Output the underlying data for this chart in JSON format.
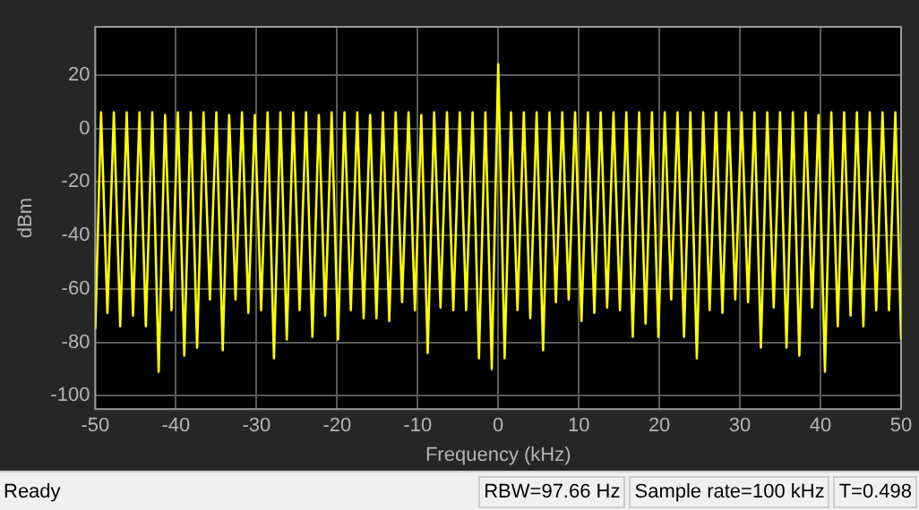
{
  "chart_data": {
    "type": "line",
    "xlabel": "Frequency (kHz)",
    "ylabel": "dBm",
    "x": [
      -50,
      -49.29,
      -48.5,
      -47.7,
      -46.91,
      -46.11,
      -45.32,
      -44.52,
      -43.73,
      -42.93,
      -42.14,
      -41.34,
      -40.55,
      -39.75,
      -38.96,
      -38.16,
      -37.37,
      -36.57,
      -35.78,
      -34.98,
      -34.19,
      -33.39,
      -32.6,
      -31.8,
      -31.01,
      -30.21,
      -29.42,
      -28.62,
      -27.83,
      -27.03,
      -26.24,
      -25.44,
      -24.65,
      -23.85,
      -23.06,
      -22.26,
      -21.47,
      -20.67,
      -19.88,
      -19.08,
      -18.29,
      -17.49,
      -16.7,
      -15.9,
      -15.11,
      -14.31,
      -13.52,
      -12.72,
      -11.93,
      -11.13,
      -10.34,
      -9.54,
      -8.75,
      -7.95,
      -7.16,
      -6.36,
      -5.57,
      -4.77,
      -3.98,
      -3.18,
      -2.39,
      -1.59,
      -0.8,
      0,
      0.8,
      1.59,
      2.39,
      3.18,
      3.98,
      4.77,
      5.57,
      6.36,
      7.16,
      7.95,
      8.75,
      9.54,
      10.34,
      11.13,
      11.93,
      12.72,
      13.52,
      14.31,
      15.11,
      15.9,
      16.7,
      17.49,
      18.29,
      19.08,
      19.88,
      20.67,
      21.47,
      22.26,
      23.06,
      23.85,
      24.65,
      25.44,
      26.24,
      27.03,
      27.83,
      28.62,
      29.42,
      30.21,
      31.01,
      31.8,
      32.6,
      33.39,
      34.19,
      34.98,
      35.78,
      36.57,
      37.37,
      38.16,
      38.96,
      39.75,
      40.55,
      41.34,
      42.14,
      42.93,
      43.73,
      44.52,
      45.32,
      46.11,
      46.91,
      47.7,
      48.5,
      49.29,
      50
    ],
    "series": [
      {
        "color": "#ffff00",
        "values": [
          -75,
          6,
          -69,
          6,
          -74,
          6,
          -70,
          6,
          -74,
          6,
          -91,
          5,
          -68,
          6,
          -85,
          6,
          -82,
          6,
          -64,
          6,
          -83,
          5,
          -64,
          6,
          -69,
          5,
          -68,
          6,
          -86,
          6,
          -79,
          6,
          -68,
          6,
          -78,
          5,
          -70,
          6,
          -79,
          6,
          -68,
          6,
          -71,
          5,
          -71,
          6,
          -72,
          6,
          -65,
          6,
          -68,
          5,
          -84,
          6,
          -67,
          6,
          -68,
          6,
          -68,
          6,
          -86,
          6,
          -90,
          24,
          -86,
          6,
          -68,
          6,
          -71,
          6,
          -83,
          6,
          -65,
          6,
          -64,
          6,
          -72,
          6,
          -69,
          6,
          -67,
          6,
          -68,
          6,
          -78,
          6,
          -73,
          6,
          -78,
          6,
          -64,
          6,
          -78,
          6,
          -86,
          6,
          -68,
          6,
          -69,
          6,
          -64,
          6,
          -65,
          6,
          -82,
          6,
          -67,
          6,
          -82,
          6,
          -85,
          6,
          -67,
          5,
          -91,
          6,
          -74,
          6,
          -70,
          6,
          -74,
          6,
          -68,
          6,
          -68,
          6,
          -79
        ]
      }
    ],
    "xlim": [
      -50,
      50
    ],
    "xticks": [
      -50,
      -40,
      -30,
      -20,
      -10,
      0,
      10,
      20,
      30,
      40,
      50
    ],
    "ylim": [
      -105,
      38
    ],
    "yticks": [
      -100,
      -80,
      -60,
      -40,
      -20,
      0,
      20
    ],
    "grid": true,
    "legend": false,
    "marker": "none",
    "line_style": "solid",
    "annotations": [
      "Ready",
      "RBW=97.66 Hz",
      "Sample rate=100 kHz",
      "T=0.498"
    ]
  }
}
